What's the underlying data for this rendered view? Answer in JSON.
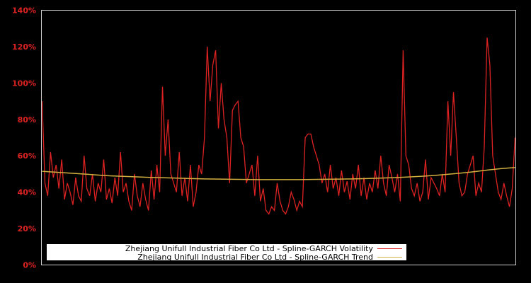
{
  "chart_data": {
    "type": "line",
    "title": "",
    "xlabel": "",
    "ylabel": "",
    "ylim": [
      0,
      140
    ],
    "y_ticks": [
      "0%",
      "20%",
      "40%",
      "60%",
      "80%",
      "100%",
      "120%",
      "140%"
    ],
    "y_tick_values": [
      0,
      20,
      40,
      60,
      80,
      100,
      120,
      140
    ],
    "grid": false,
    "legend_position": "lower center",
    "colors": {
      "background": "#000000",
      "axis": "#cccccc",
      "tick_labels": "#dd2222",
      "volatility": "#dd2222",
      "trend": "#d4b040",
      "legend_bg": "#ffffff"
    },
    "series": [
      {
        "name": "Zhejiang Unifull Industrial Fiber Co Ltd - Spline-GARCH Volatility",
        "color": "#dd2222",
        "values": [
          90,
          45,
          38,
          62,
          48,
          55,
          42,
          58,
          36,
          45,
          40,
          33,
          48,
          38,
          35,
          60,
          42,
          38,
          50,
          35,
          45,
          40,
          58,
          36,
          42,
          34,
          48,
          38,
          62,
          40,
          45,
          35,
          30,
          50,
          38,
          32,
          45,
          36,
          30,
          52,
          36,
          55,
          40,
          98,
          60,
          80,
          50,
          45,
          40,
          62,
          38,
          48,
          35,
          55,
          32,
          40,
          55,
          50,
          70,
          120,
          90,
          110,
          118,
          75,
          100,
          80,
          70,
          45,
          85,
          88,
          90,
          70,
          65,
          45,
          50,
          55,
          38,
          60,
          35,
          42,
          30,
          28,
          32,
          30,
          45,
          35,
          30,
          28,
          32,
          40,
          36,
          30,
          35,
          32,
          70,
          72,
          72,
          65,
          60,
          55,
          45,
          50,
          40,
          55,
          42,
          48,
          38,
          52,
          40,
          46,
          36,
          50,
          42,
          55,
          38,
          48,
          36,
          45,
          40,
          52,
          42,
          60,
          45,
          38,
          55,
          48,
          40,
          50,
          35,
          118,
          60,
          55,
          42,
          38,
          45,
          35,
          40,
          58,
          36,
          48,
          45,
          42,
          38,
          50,
          40,
          90,
          60,
          95,
          70,
          45,
          38,
          40,
          50,
          55,
          60,
          38,
          45,
          40,
          65,
          125,
          110,
          60,
          50,
          40,
          36,
          45,
          38,
          32,
          42,
          70
        ]
      },
      {
        "name": "Zhejiang Unifull Industrial Fiber Co Ltd - Spline-GARCH Trend",
        "color": "#d4b040",
        "values": [
          51.5,
          51.0,
          50.5,
          50.0,
          49.5,
          49.0,
          48.7,
          48.4,
          48.1,
          47.9,
          47.7,
          47.5,
          47.3,
          47.2,
          47.1,
          47.0,
          46.9,
          46.9,
          46.9,
          46.9,
          47.0,
          47.1,
          47.2,
          47.3,
          47.5,
          47.7,
          48.0,
          48.3,
          48.7,
          49.2,
          49.8,
          50.5,
          51.3,
          52.2,
          53.0,
          53.6
        ]
      }
    ]
  },
  "legend": {
    "items": [
      {
        "label": "Zhejiang Unifull Industrial Fiber Co Ltd - Spline-GARCH Volatility",
        "color": "#dd2222"
      },
      {
        "label": "Zhejiang Unifull Industrial Fiber Co Ltd - Spline-GARCH Trend",
        "color": "#d4b040"
      }
    ]
  }
}
